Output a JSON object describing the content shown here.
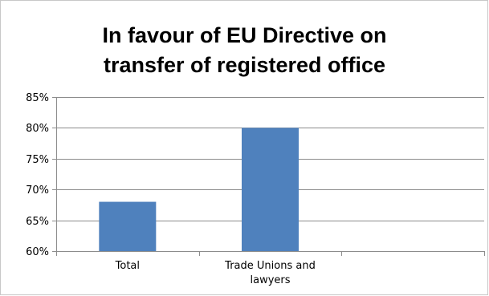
{
  "chart_data": {
    "type": "bar",
    "title_lines": [
      "In favour of EU Directive on",
      "transfer of registered office"
    ],
    "categories": [
      [
        "Total"
      ],
      [
        "Trade Unions and",
        "lawyers"
      ]
    ],
    "values": [
      68,
      80
    ],
    "y_tick_labels": [
      "85%",
      "80%",
      "75%",
      "70%",
      "65%",
      "60%"
    ],
    "y_ticks": [
      85,
      80,
      75,
      70,
      65,
      60
    ],
    "ylim": [
      60,
      85
    ],
    "grid": true,
    "legend": "none",
    "bar_color": "#4F81BD",
    "grid_color": "#8C8C8C"
  }
}
